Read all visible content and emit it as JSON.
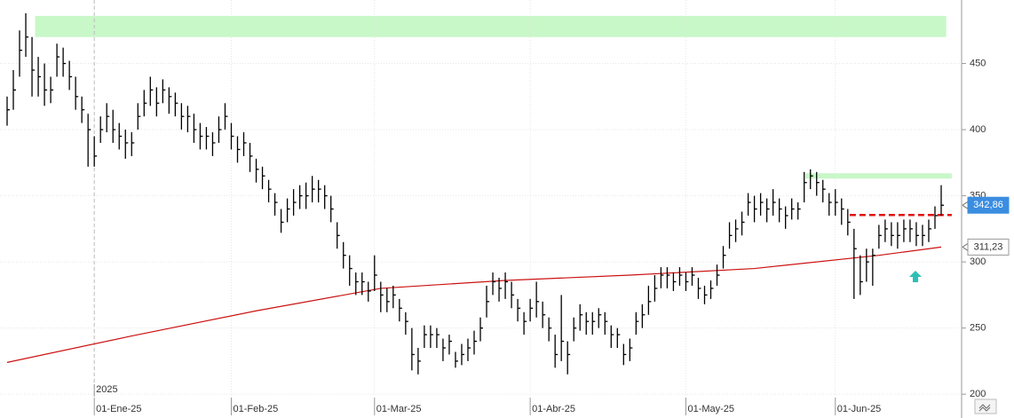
{
  "chart_data": {
    "type": "ohlc",
    "categories": [
      null,
      null,
      null,
      null,
      null,
      null,
      null,
      null,
      null,
      null,
      null,
      null,
      null,
      null,
      "01-Ene-25",
      null,
      null,
      null,
      null,
      null,
      null,
      null,
      null,
      null,
      null,
      null,
      null,
      null,
      null,
      null,
      null,
      null,
      null,
      null,
      null,
      null,
      "01-Feb-25",
      null,
      null,
      null,
      null,
      null,
      null,
      null,
      null,
      null,
      null,
      null,
      null,
      null,
      null,
      null,
      null,
      null,
      null,
      null,
      null,
      null,
      null,
      "01-Mar-25",
      null,
      null,
      null,
      null,
      null,
      null,
      null,
      null,
      null,
      null,
      null,
      null,
      null,
      null,
      null,
      null,
      null,
      null,
      null,
      null,
      null,
      null,
      null,
      null,
      "01-Abr-25",
      null,
      null,
      null,
      null,
      null,
      null,
      null,
      null,
      null,
      null,
      null,
      null,
      null,
      null,
      null,
      null,
      null,
      null,
      null,
      null,
      null,
      null,
      null,
      null,
      "01-May-25",
      null,
      null,
      null,
      null,
      null,
      null,
      null,
      null,
      null,
      null,
      null,
      null,
      null,
      null,
      null,
      null,
      null,
      null,
      null,
      null,
      null,
      null,
      null,
      "01-Jun-25",
      null,
      null,
      null,
      null,
      null,
      null,
      null,
      null,
      null,
      null,
      null,
      null,
      null,
      null,
      null,
      null,
      null
    ],
    "year_label": "2025",
    "high": [
      425,
      445,
      475,
      488,
      470,
      455,
      450,
      440,
      465,
      462,
      452,
      440,
      425,
      412,
      395,
      410,
      420,
      415,
      405,
      400,
      398,
      420,
      430,
      440,
      432,
      438,
      432,
      428,
      420,
      418,
      412,
      405,
      402,
      398,
      410,
      420,
      405,
      395,
      398,
      390,
      378,
      372,
      362,
      352,
      340,
      348,
      355,
      358,
      360,
      365,
      362,
      358,
      350,
      330,
      315,
      305,
      292,
      292,
      285,
      305,
      285,
      280,
      282,
      272,
      262,
      250,
      235,
      252,
      252,
      250,
      242,
      245,
      232,
      238,
      242,
      248,
      258,
      282,
      292,
      288,
      292,
      285,
      272,
      262,
      272,
      285,
      270,
      258,
      245,
      275,
      240,
      258,
      268,
      262,
      262,
      265,
      262,
      252,
      250,
      238,
      242,
      262,
      268,
      282,
      290,
      296,
      296,
      292,
      296,
      292,
      296,
      288,
      282,
      286,
      298,
      312,
      330,
      332,
      338,
      352,
      350,
      352,
      348,
      355,
      348,
      342,
      348,
      345,
      368,
      370,
      368,
      362,
      352,
      355,
      348,
      340,
      325,
      305,
      310,
      310,
      328,
      332,
      330,
      330,
      332,
      332,
      330,
      328,
      332,
      342,
      358
    ],
    "low": [
      403,
      415,
      440,
      455,
      425,
      425,
      418,
      420,
      440,
      440,
      430,
      415,
      405,
      372,
      372,
      390,
      398,
      390,
      385,
      378,
      380,
      400,
      410,
      418,
      410,
      420,
      412,
      410,
      400,
      398,
      390,
      385,
      385,
      380,
      390,
      400,
      385,
      375,
      380,
      368,
      360,
      355,
      345,
      335,
      322,
      330,
      335,
      340,
      340,
      345,
      345,
      340,
      330,
      310,
      295,
      282,
      275,
      275,
      270,
      278,
      262,
      262,
      265,
      255,
      245,
      218,
      215,
      235,
      235,
      235,
      225,
      230,
      220,
      222,
      225,
      230,
      240,
      258,
      275,
      270,
      272,
      265,
      255,
      245,
      255,
      258,
      250,
      240,
      220,
      225,
      215,
      240,
      248,
      245,
      245,
      250,
      245,
      235,
      235,
      222,
      225,
      245,
      250,
      260,
      270,
      280,
      280,
      278,
      282,
      278,
      282,
      272,
      268,
      272,
      282,
      295,
      310,
      315,
      320,
      335,
      330,
      335,
      330,
      335,
      330,
      325,
      332,
      332,
      345,
      355,
      350,
      345,
      335,
      335,
      328,
      320,
      272,
      275,
      285,
      282,
      310,
      315,
      312,
      310,
      315,
      315,
      312,
      312,
      315,
      325,
      335
    ],
    "close": [
      415,
      430,
      460,
      470,
      445,
      440,
      430,
      430,
      455,
      450,
      440,
      425,
      415,
      400,
      380,
      400,
      410,
      400,
      395,
      390,
      390,
      410,
      420,
      430,
      420,
      430,
      425,
      420,
      410,
      410,
      400,
      395,
      395,
      390,
      400,
      410,
      395,
      385,
      390,
      380,
      370,
      365,
      355,
      345,
      330,
      340,
      345,
      350,
      350,
      355,
      355,
      350,
      340,
      320,
      305,
      295,
      285,
      285,
      278,
      290,
      275,
      270,
      275,
      265,
      255,
      230,
      225,
      245,
      245,
      245,
      235,
      240,
      225,
      230,
      235,
      240,
      250,
      270,
      285,
      280,
      285,
      275,
      265,
      255,
      265,
      270,
      260,
      250,
      230,
      240,
      230,
      250,
      260,
      255,
      255,
      260,
      255,
      245,
      245,
      230,
      235,
      255,
      260,
      270,
      280,
      290,
      290,
      285,
      290,
      285,
      290,
      280,
      275,
      280,
      290,
      305,
      320,
      325,
      330,
      345,
      340,
      345,
      340,
      345,
      340,
      335,
      340,
      340,
      360,
      365,
      360,
      355,
      345,
      345,
      340,
      330,
      310,
      285,
      300,
      305,
      320,
      325,
      320,
      320,
      325,
      325,
      320,
      320,
      325,
      335,
      342.86
    ],
    "last_close_label": {
      "value": 342.86,
      "label": "342,86"
    },
    "bar_color": "#000000",
    "ma": {
      "color": "#cc1111",
      "x": [
        0,
        20,
        40,
        60,
        80,
        100,
        120,
        140,
        150
      ],
      "values": [
        224,
        244,
        263,
        280,
        286,
        290,
        295,
        305,
        311.23
      ],
      "last_label": {
        "value": 311.23,
        "label": "311,23"
      }
    },
    "zones": [
      {
        "x": [
          4.5,
          150.8
        ],
        "y": [
          470,
          486
        ],
        "color": "#c8f7c8"
      },
      {
        "x": [
          128.2,
          151.7
        ],
        "y": [
          363,
          367
        ],
        "color": "#c8f7c8"
      }
    ],
    "level_line": {
      "x": [
        135.3,
        151.7
      ],
      "y": 335.5,
      "color": "#e01010"
    },
    "ylim": [
      182,
      498
    ],
    "yticks": [
      200,
      250,
      300,
      350,
      400,
      450
    ],
    "grid": true
  }
}
